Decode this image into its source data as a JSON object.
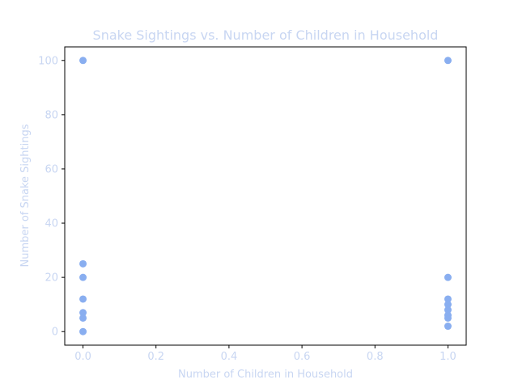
{
  "colors": {
    "text": "#c8d6f2",
    "marker": "#89aef0",
    "axis": "#000000",
    "background": "#ffffff"
  },
  "chart_data": {
    "type": "scatter",
    "title": "Snake Sightings vs. Number of Children in Household",
    "xlabel": "Number of Children in Household",
    "ylabel": "Number of Snake Sightings",
    "xlim": [
      -0.05,
      1.05
    ],
    "ylim": [
      -5,
      105
    ],
    "grid": false,
    "x_ticks": [
      0.0,
      0.2,
      0.4,
      0.6,
      0.8,
      1.0
    ],
    "x_tick_labels": [
      "0.0",
      "0.2",
      "0.4",
      "0.6",
      "0.8",
      "1.0"
    ],
    "y_ticks": [
      0,
      20,
      40,
      60,
      80,
      100
    ],
    "y_tick_labels": [
      "0",
      "20",
      "40",
      "60",
      "80",
      "100"
    ],
    "points": [
      {
        "x": 0,
        "y": 100
      },
      {
        "x": 0,
        "y": 25
      },
      {
        "x": 0,
        "y": 20
      },
      {
        "x": 0,
        "y": 12
      },
      {
        "x": 0,
        "y": 7
      },
      {
        "x": 0,
        "y": 5
      },
      {
        "x": 0,
        "y": 0
      },
      {
        "x": 1,
        "y": 100
      },
      {
        "x": 1,
        "y": 20
      },
      {
        "x": 1,
        "y": 12
      },
      {
        "x": 1,
        "y": 10
      },
      {
        "x": 1,
        "y": 8
      },
      {
        "x": 1,
        "y": 6
      },
      {
        "x": 1,
        "y": 5
      },
      {
        "x": 1,
        "y": 2
      }
    ]
  }
}
